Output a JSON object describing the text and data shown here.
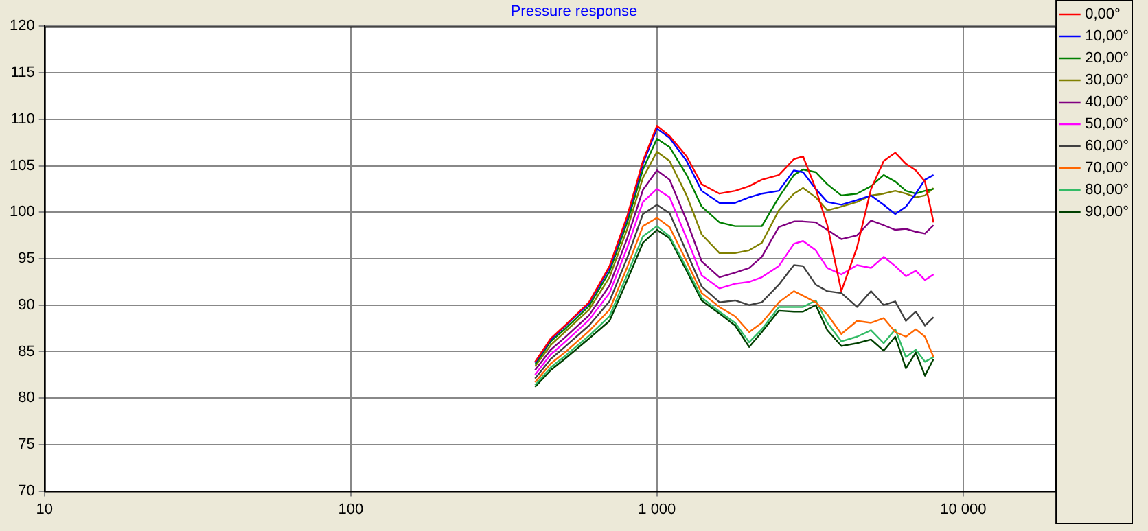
{
  "chart_data": {
    "type": "line",
    "title": "Pressure response",
    "log": "x",
    "grid": true,
    "legend": "top right",
    "marker": "none",
    "line_style": "solid",
    "xlim": [
      10,
      20000
    ],
    "xticks": [
      10,
      100,
      {
        "value": 1000,
        "label": "1 000"
      },
      {
        "value": 10000,
        "label": "10 000"
      }
    ],
    "ylim": [
      70,
      120
    ],
    "yticks": [
      70,
      75,
      80,
      85,
      90,
      95,
      100,
      105,
      110,
      115,
      120
    ],
    "x": [
      400,
      450,
      500,
      600,
      700,
      800,
      900,
      1000,
      1100,
      1250,
      1400,
      1600,
      1800,
      2000,
      2200,
      2500,
      2800,
      3000,
      3300,
      3600,
      4000,
      4500,
      5000,
      5500,
      6000,
      6500,
      7000,
      7500,
      8000
    ],
    "series": [
      {
        "name": "0,00°",
        "color": "#ff0000",
        "values": [
          83.9,
          86.4,
          87.8,
          90.3,
          94.2,
          99.6,
          105.5,
          109.3,
          108.2,
          106,
          103,
          102,
          102.3,
          102.8,
          103.5,
          104,
          105.7,
          106,
          102.5,
          98.6,
          91.5,
          96.2,
          102.5,
          105.5,
          106.4,
          105.2,
          104.5,
          103.3,
          98.9
        ]
      },
      {
        "name": "10,00°",
        "color": "#0000ff",
        "values": [
          83.8,
          86.3,
          87.7,
          90.2,
          94.0,
          99.4,
          105.2,
          109,
          108,
          105.5,
          102.3,
          101,
          101,
          101.6,
          102,
          102.3,
          104.5,
          104.3,
          102.5,
          101.1,
          100.8,
          101.3,
          101.8,
          100.8,
          99.8,
          100.6,
          102,
          103.5,
          104
        ]
      },
      {
        "name": "20,00°",
        "color": "#008000",
        "values": [
          83.6,
          86.1,
          87.4,
          89.9,
          93.6,
          98.9,
          104.6,
          107.9,
          107,
          104,
          100.6,
          98.9,
          98.5,
          98.5,
          98.5,
          101.6,
          104,
          104.6,
          104.3,
          103,
          101.8,
          102,
          102.8,
          104,
          103.3,
          102.3,
          102,
          102.3,
          102.5
        ]
      },
      {
        "name": "30,00°",
        "color": "#808000",
        "values": [
          83.4,
          85.7,
          87.1,
          89.5,
          93.0,
          98.2,
          103.7,
          106.5,
          105.5,
          101.8,
          97.6,
          95.6,
          95.6,
          95.9,
          96.7,
          100.2,
          102,
          102.6,
          101.6,
          100.2,
          100.6,
          101.1,
          101.8,
          102,
          102.3,
          102,
          101.6,
          101.8,
          102.6
        ]
      },
      {
        "name": "40,00°",
        "color": "#800080",
        "values": [
          83.0,
          85.2,
          86.5,
          88.9,
          92.1,
          97.2,
          102.4,
          104.5,
          103.5,
          99.1,
          94.7,
          93,
          93.5,
          94,
          95.2,
          98.4,
          99,
          99,
          98.9,
          98.1,
          97.1,
          97.5,
          99.1,
          98.6,
          98.1,
          98.2,
          97.9,
          97.7,
          98.6
        ]
      },
      {
        "name": "50,00°",
        "color": "#ff00ff",
        "values": [
          82.5,
          84.7,
          86.0,
          88.4,
          91.3,
          96.2,
          101.1,
          102.5,
          101.6,
          97.2,
          93.2,
          91.8,
          92.3,
          92.5,
          93,
          94.2,
          96.6,
          96.9,
          95.9,
          94,
          93.3,
          94.3,
          94,
          95.2,
          94.2,
          93.1,
          93.7,
          92.7,
          93.3
        ]
      },
      {
        "name": "60,00°",
        "color": "#404040",
        "values": [
          82.1,
          84.2,
          85.5,
          87.8,
          90.4,
          95.1,
          99.8,
          100.8,
          99.9,
          95.7,
          92,
          90.3,
          90.5,
          90,
          90.3,
          92.2,
          94.3,
          94.2,
          92.2,
          91.5,
          91.3,
          89.8,
          91.5,
          90,
          90.4,
          88.3,
          89.3,
          87.8,
          88.7
        ]
      },
      {
        "name": "70,00°",
        "color": "#ff6600",
        "values": [
          81.7,
          83.7,
          84.9,
          87.2,
          89.5,
          94.1,
          98.5,
          99.4,
          98.4,
          94.7,
          91.3,
          89.8,
          88.8,
          87.1,
          88.1,
          90.3,
          91.5,
          91,
          90.3,
          89,
          86.9,
          88.3,
          88.1,
          88.6,
          87.1,
          86.6,
          87.4,
          86.6,
          84.4
        ]
      },
      {
        "name": "80,00°",
        "color": "#33bb66",
        "values": [
          81.4,
          83.3,
          84.5,
          86.7,
          88.8,
          93.3,
          97.4,
          98.5,
          97.4,
          94,
          90.8,
          89.3,
          88.1,
          86,
          87.4,
          89.8,
          89.8,
          89.8,
          90.5,
          88.1,
          86.1,
          86.6,
          87.3,
          85.9,
          87.4,
          84.4,
          85.2,
          83.9,
          84.4
        ]
      },
      {
        "name": "90,00°",
        "color": "#004000",
        "values": [
          81.2,
          83.0,
          84.2,
          86.4,
          88.3,
          92.7,
          96.7,
          98.1,
          97.2,
          93.7,
          90.5,
          89.1,
          87.8,
          85.5,
          87.1,
          89.4,
          89.3,
          89.3,
          90,
          87.3,
          85.6,
          85.9,
          86.3,
          85.1,
          86.6,
          83.2,
          84.9,
          82.4,
          84.2
        ]
      }
    ]
  }
}
